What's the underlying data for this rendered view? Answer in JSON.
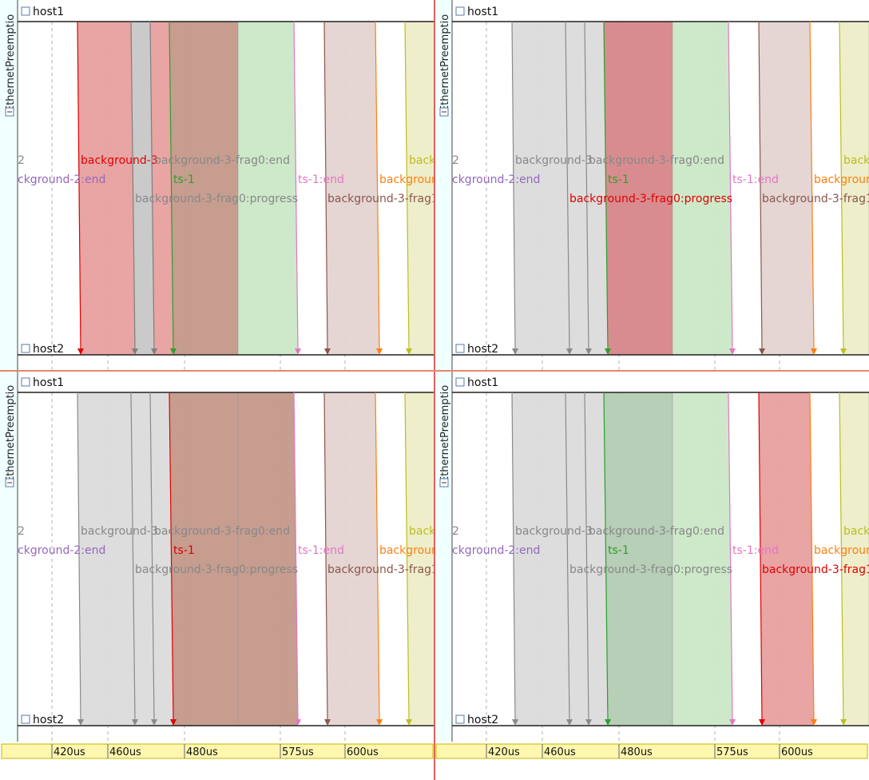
{
  "module_label": "EthernetPreemptio",
  "top_host": "host1",
  "bottom_host": "host2",
  "axis_ticks": [
    "420us",
    "460us",
    "480us",
    "575us",
    "600us"
  ],
  "partial_labels": {
    "left_edge_2": "2",
    "bg2_end": "ckground-2:end"
  },
  "messages": [
    {
      "id": "bg3",
      "label": "background-3",
      "color": "#d62728"
    },
    {
      "id": "frag0_end",
      "label": "background-3-frag0:end",
      "color": "#7f7f7f"
    },
    {
      "id": "ts1",
      "label": "ts-1",
      "color": "#2ca02c"
    },
    {
      "id": "frag0_prog",
      "label": "background-3-frag0:progress",
      "color": "#8c564b"
    },
    {
      "id": "ts1_end",
      "label": "ts-1:end",
      "color": "#e377c2"
    },
    {
      "id": "frag1",
      "label": "background-3-frag1",
      "color": "#8c564b"
    },
    {
      "id": "bg_orange",
      "label": "backgroun",
      "color": "#ff7f0e"
    },
    {
      "id": "bg_olive",
      "label": "back",
      "color": "#bcbd22"
    },
    {
      "id": "bg2",
      "label": "ckground-2:end",
      "color": "#9467bd"
    }
  ],
  "panes": [
    {
      "name": "top-left",
      "selected": "bg3"
    },
    {
      "name": "top-right",
      "selected": "frag0_prog"
    },
    {
      "name": "bottom-left",
      "selected": "ts1"
    },
    {
      "name": "bottom-right",
      "selected": "frag1"
    }
  ],
  "colors": {
    "accent_axis": "#fff7b0",
    "axis_border": "#c8b400",
    "sidebar": "#f0ffff",
    "frame_red": "#e06060"
  }
}
